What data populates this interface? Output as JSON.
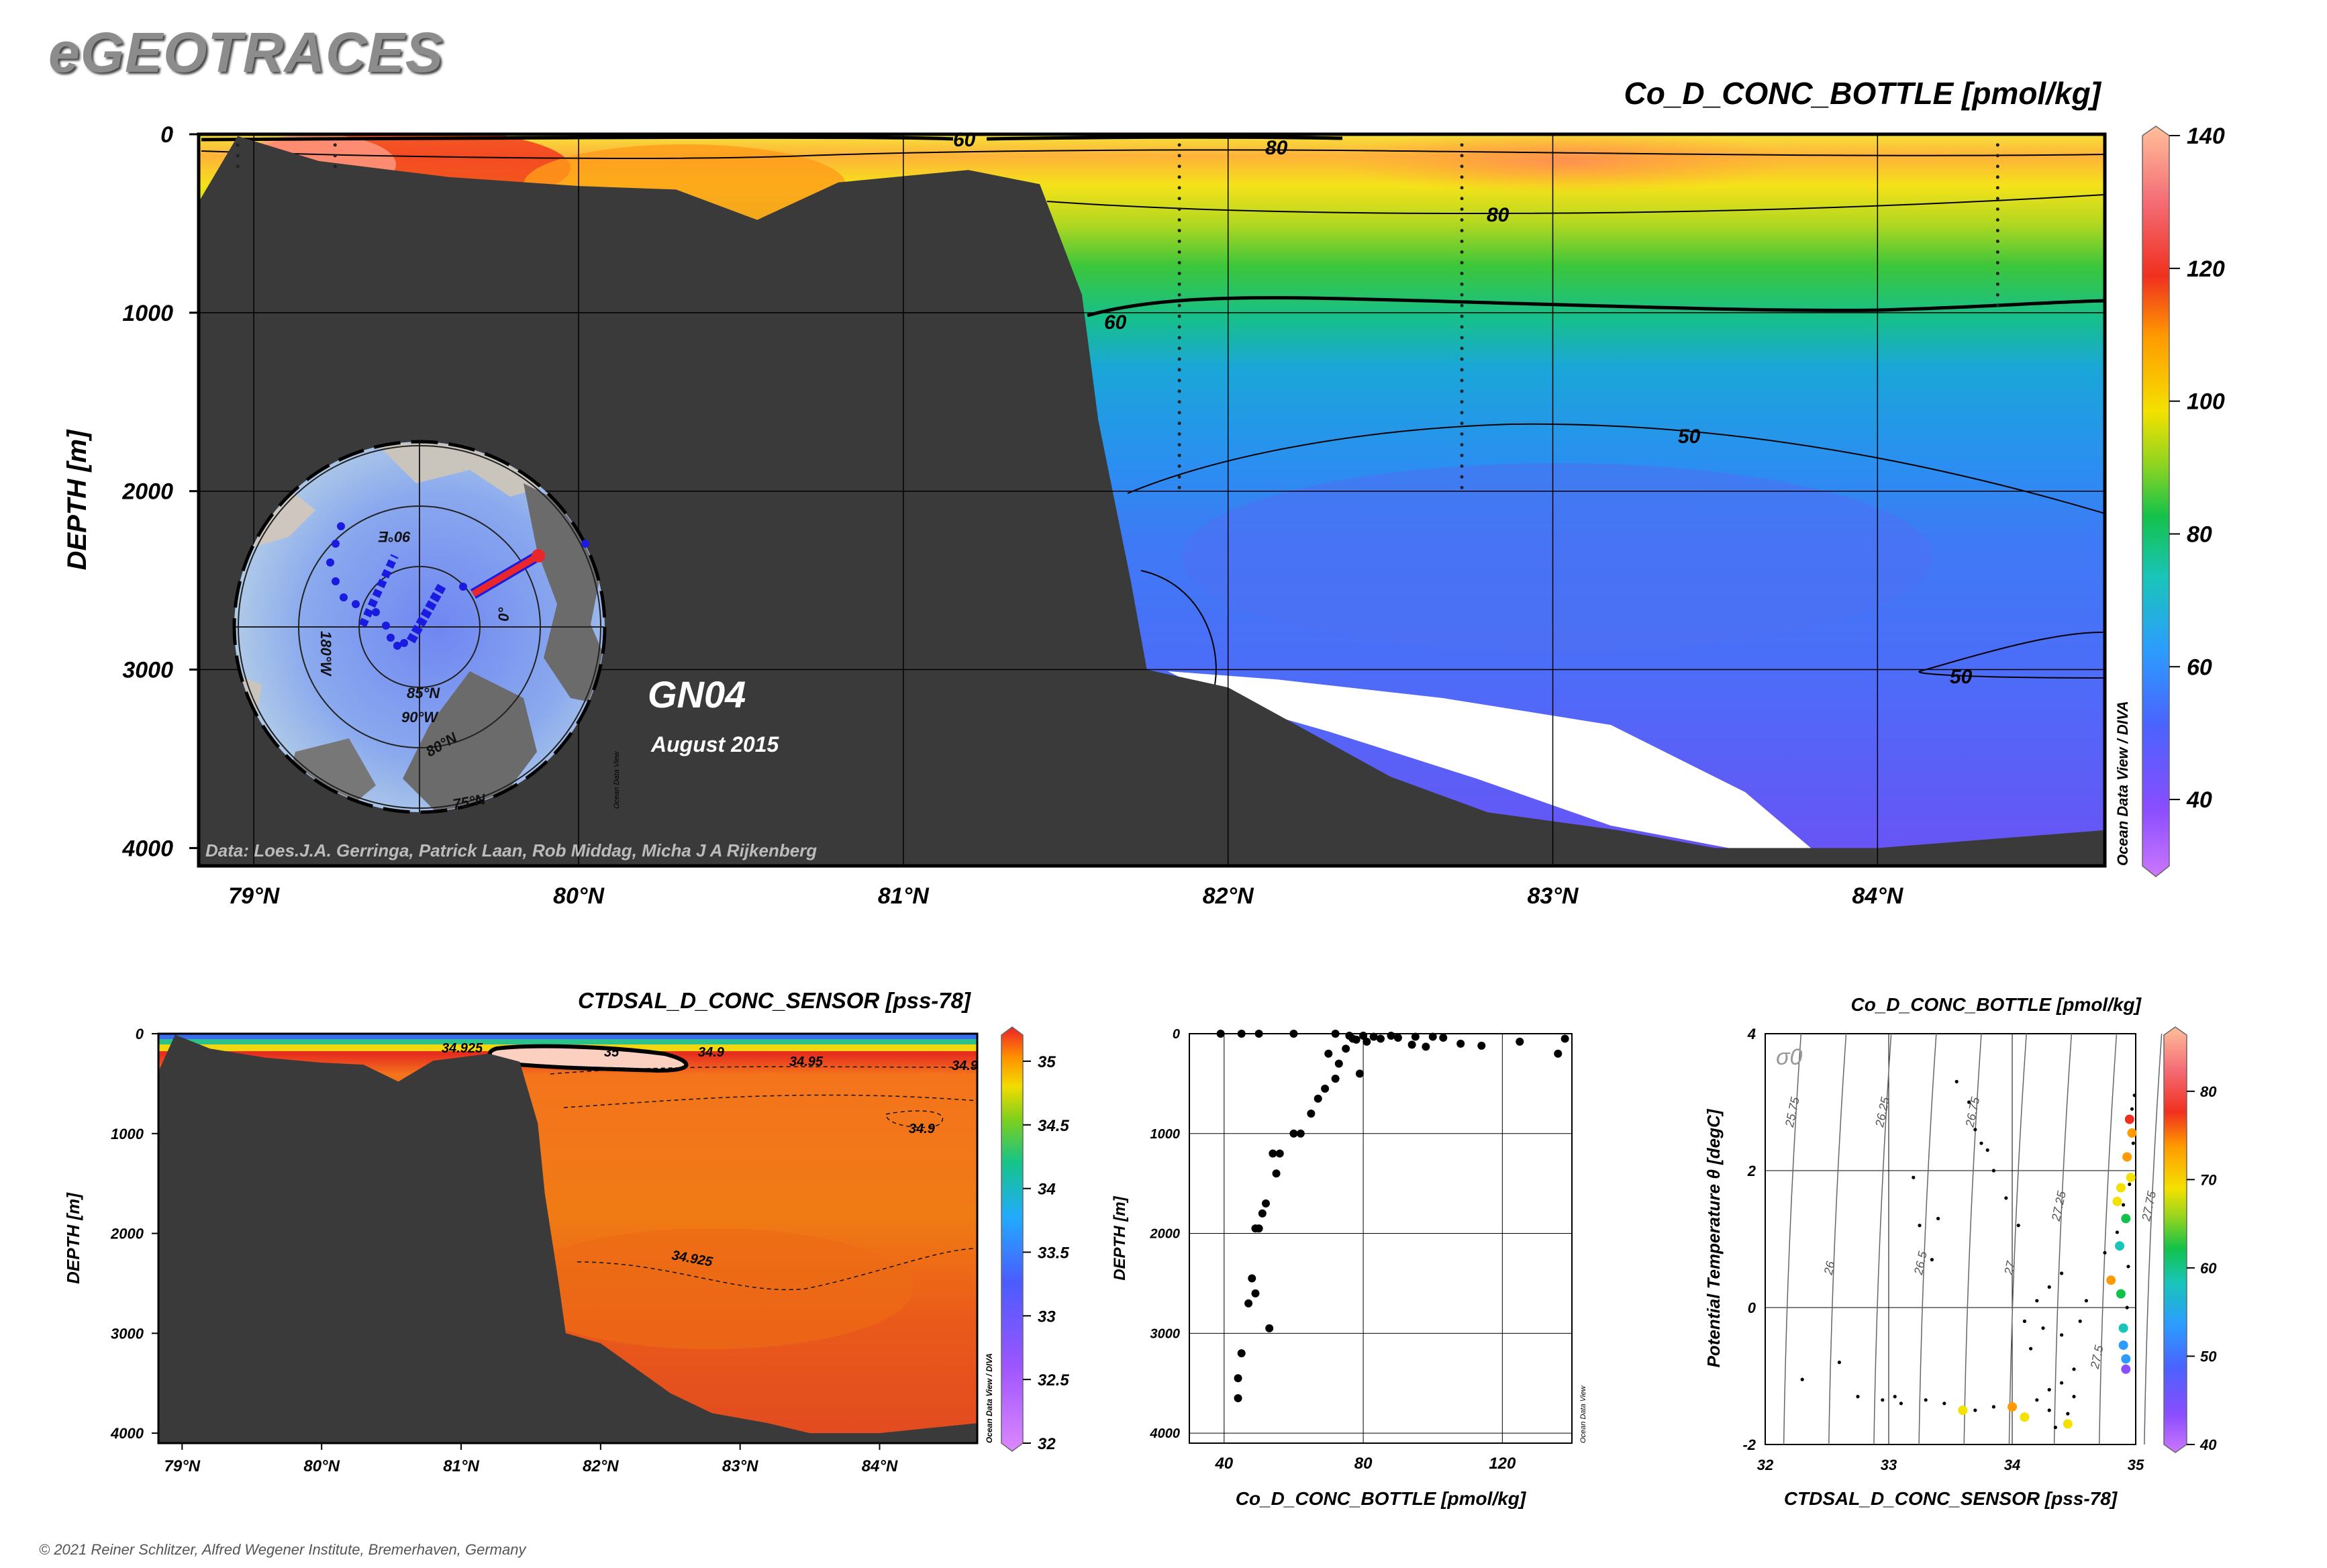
{
  "brand": "eGEOTRACES",
  "copyright": "© 2021 Reiner Schlitzer, Alfred Wegener Institute, Bremerhaven, Germany",
  "main_section": {
    "title": "Co_D_CONC_BOTTLE [pmol/kg]",
    "ylabel": "DEPTH [m]",
    "y_ticks": [
      "0",
      "1000",
      "2000",
      "3000",
      "4000"
    ],
    "x_ticks": [
      "79°N",
      "80°N",
      "81°N",
      "82°N",
      "83°N",
      "84°N"
    ],
    "colorbar_ticks": [
      "140",
      "120",
      "100",
      "80",
      "60",
      "40"
    ],
    "colorbar_range": [
      30,
      140
    ],
    "contour_labels": [
      "60",
      "80",
      "80",
      "60",
      "50",
      "50"
    ],
    "cruise": "GN04",
    "date": "August 2015",
    "credit": "Data: Loes.J.A. Gerringa, Patrick Laan, Rob Middag, Micha J A Rijkenberg",
    "odv_tag": "Ocean Data View / DIVA",
    "map_labels": [
      "90°E",
      "180°W",
      "0°",
      "85°N",
      "90°W",
      "80°N",
      "75°N"
    ],
    "map_tag": "Ocean Data View"
  },
  "sal_section": {
    "title": "CTDSAL_D_CONC_SENSOR [pss-78]",
    "ylabel": "DEPTH [m]",
    "y_ticks": [
      "0",
      "1000",
      "2000",
      "3000",
      "4000"
    ],
    "x_ticks": [
      "79°N",
      "80°N",
      "81°N",
      "82°N",
      "83°N",
      "84°N"
    ],
    "colorbar_ticks": [
      "35",
      "34.5",
      "34",
      "33.5",
      "33",
      "32.5",
      "32"
    ],
    "contour_labels": [
      "34.925",
      "35",
      "34.9",
      "34.95",
      "34.9",
      "34.9",
      "34.925"
    ],
    "odv_tag": "Ocean Data View / DIVA"
  },
  "colors": {
    "bathymetry": "#3a3a3a",
    "contour": "#000000",
    "map_track_red": "#e8262b",
    "map_station_blue": "#1a1ae0"
  },
  "chart_data": [
    {
      "type": "heatmap",
      "title": "Co_D_CONC_BOTTLE [pmol/kg]",
      "xlabel": "",
      "ylabel": "DEPTH [m]",
      "xlim": [
        78.83,
        84.7
      ],
      "ylim": [
        4100,
        0
      ],
      "colorbar": {
        "label": "Co_D_CONC_BOTTLE [pmol/kg]",
        "range": [
          30,
          140
        ],
        "ticks": [
          40,
          60,
          80,
          100,
          120,
          140
        ]
      },
      "profile_latitudes": [
        78.95,
        79.25,
        81.85,
        82.72,
        84.37
      ],
      "contours": [
        50,
        60,
        80
      ],
      "field_description_by_depth": [
        {
          "depth": 0,
          "value": 90
        },
        {
          "depth": 100,
          "value": 95
        },
        {
          "depth": 250,
          "value": 82
        },
        {
          "depth": 500,
          "value": 72
        },
        {
          "depth": 750,
          "value": 63
        },
        {
          "depth": 1000,
          "value": 57
        },
        {
          "depth": 1500,
          "value": 50
        },
        {
          "depth": 2000,
          "value": 46
        },
        {
          "depth": 2500,
          "value": 44
        },
        {
          "depth": 3000,
          "value": 43
        },
        {
          "depth": 4000,
          "value": 40
        }
      ],
      "bathymetry": [
        [
          78.83,
          380
        ],
        [
          78.95,
          10
        ],
        [
          79.2,
          150
        ],
        [
          79.6,
          240
        ],
        [
          80.0,
          290
        ],
        [
          80.3,
          310
        ],
        [
          80.55,
          480
        ],
        [
          80.8,
          270
        ],
        [
          81.2,
          200
        ],
        [
          81.42,
          280
        ],
        [
          81.55,
          900
        ],
        [
          81.6,
          1600
        ],
        [
          81.7,
          2500
        ],
        [
          81.75,
          3000
        ],
        [
          82.0,
          3100
        ],
        [
          82.2,
          3300
        ],
        [
          82.5,
          3600
        ],
        [
          82.8,
          3800
        ],
        [
          83.2,
          3900
        ],
        [
          83.5,
          4000
        ],
        [
          84.0,
          4000
        ],
        [
          84.7,
          3900
        ]
      ]
    },
    {
      "type": "heatmap",
      "title": "CTDSAL_D_CONC_SENSOR [pss-78]",
      "xlabel": "",
      "ylabel": "DEPTH [m]",
      "xlim": [
        78.83,
        84.7
      ],
      "ylim": [
        4100,
        0
      ],
      "colorbar": {
        "label": "CTDSAL_D_CONC_SENSOR [pss-78]",
        "range": [
          32,
          35.1
        ],
        "ticks": [
          32,
          32.5,
          33,
          33.5,
          34,
          34.5,
          35
        ]
      },
      "contours": [
        34.9,
        34.925,
        34.95,
        35
      ]
    },
    {
      "type": "scatter",
      "title": "",
      "xlabel": "Co_D_CONC_BOTTLE [pmol/kg]",
      "ylabel": "DEPTH [m]",
      "xlim": [
        30,
        140
      ],
      "ylim": [
        4100,
        0
      ],
      "x_ticks": [
        40,
        80,
        120
      ],
      "y_ticks": [
        0,
        1000,
        2000,
        3000,
        4000
      ],
      "grid": true,
      "tag": "Ocean Data View",
      "points": [
        [
          39,
          0
        ],
        [
          45,
          0
        ],
        [
          50,
          0
        ],
        [
          60,
          0
        ],
        [
          72,
          0
        ],
        [
          76,
          20
        ],
        [
          80,
          20
        ],
        [
          83,
          30
        ],
        [
          88,
          20
        ],
        [
          95,
          30
        ],
        [
          100,
          30
        ],
        [
          103,
          40
        ],
        [
          77,
          50
        ],
        [
          78,
          60
        ],
        [
          81,
          80
        ],
        [
          85,
          50
        ],
        [
          90,
          40
        ],
        [
          94,
          110
        ],
        [
          98,
          130
        ],
        [
          108,
          100
        ],
        [
          114,
          120
        ],
        [
          125,
          80
        ],
        [
          136,
          200
        ],
        [
          138,
          50
        ],
        [
          70,
          200
        ],
        [
          75,
          150
        ],
        [
          73,
          300
        ],
        [
          79,
          400
        ],
        [
          72,
          450
        ],
        [
          69,
          550
        ],
        [
          67,
          650
        ],
        [
          65,
          800
        ],
        [
          62,
          1000
        ],
        [
          60,
          1000
        ],
        [
          56,
          1200
        ],
        [
          54,
          1200
        ],
        [
          55,
          1400
        ],
        [
          52,
          1700
        ],
        [
          51,
          1800
        ],
        [
          50,
          1950
        ],
        [
          49,
          1950
        ],
        [
          48,
          2450
        ],
        [
          49,
          2600
        ],
        [
          47,
          2700
        ],
        [
          53,
          2950
        ],
        [
          45,
          3200
        ],
        [
          44,
          3450
        ],
        [
          44,
          3650
        ]
      ]
    },
    {
      "type": "scatter",
      "title": "Co_D_CONC_BOTTLE [pmol/kg]",
      "xlabel": "CTDSAL_D_CONC_SENSOR [pss-78]",
      "ylabel": "Potential Temperature θ [degC]",
      "xlim": [
        32,
        35
      ],
      "ylim": [
        -2,
        4
      ],
      "x_ticks": [
        32,
        33,
        34,
        35
      ],
      "y_ticks": [
        -2,
        0,
        2,
        4
      ],
      "isopycnal_label": "σ0",
      "isopycnals": [
        "25.75",
        "26",
        "26.25",
        "26.5",
        "26.75",
        "27",
        "27.25",
        "27.5",
        "27.75"
      ],
      "colorbar": {
        "label": "Co_D_CONC_BOTTLE [pmol/kg]",
        "range": [
          40,
          85
        ],
        "ticks": [
          40,
          50,
          60,
          70,
          80
        ]
      },
      "grid": true,
      "colored_points": [
        [
          34.95,
          2.75,
          80
        ],
        [
          34.97,
          2.55,
          78
        ],
        [
          34.93,
          2.2,
          77
        ],
        [
          34.96,
          1.9,
          72
        ],
        [
          34.88,
          1.75,
          71
        ],
        [
          34.85,
          1.55,
          68
        ],
        [
          34.92,
          1.3,
          64
        ],
        [
          34.87,
          0.9,
          60
        ],
        [
          34.8,
          0.4,
          78
        ],
        [
          34.88,
          0.2,
          63
        ],
        [
          34.9,
          -0.3,
          57
        ],
        [
          34.9,
          -0.55,
          53
        ],
        [
          34.92,
          -0.75,
          48
        ],
        [
          34.92,
          -0.9,
          44
        ],
        [
          33.6,
          -1.5,
          72
        ],
        [
          34.0,
          -1.45,
          78
        ],
        [
          34.45,
          -1.7,
          73
        ],
        [
          34.1,
          -1.6,
          70
        ]
      ],
      "black_points": [
        [
          32.3,
          -1.05
        ],
        [
          32.6,
          -0.8
        ],
        [
          32.75,
          -1.3
        ],
        [
          32.95,
          -1.35
        ],
        [
          33.05,
          -1.3
        ],
        [
          33.1,
          -1.4
        ],
        [
          33.3,
          -1.35
        ],
        [
          33.45,
          -1.4
        ],
        [
          33.7,
          -1.5
        ],
        [
          33.85,
          -1.45
        ],
        [
          34.2,
          -1.35
        ],
        [
          34.3,
          -1.2
        ],
        [
          34.4,
          -1.1
        ],
        [
          34.5,
          -0.9
        ],
        [
          34.3,
          -1.5
        ],
        [
          34.35,
          -1.75
        ],
        [
          33.55,
          3.3
        ],
        [
          33.65,
          3.0
        ],
        [
          33.7,
          2.6
        ],
        [
          33.75,
          2.4
        ],
        [
          33.8,
          2.3
        ],
        [
          33.85,
          2.0
        ],
        [
          33.95,
          1.6
        ],
        [
          34.05,
          1.2
        ],
        [
          33.4,
          1.3
        ],
        [
          33.25,
          1.2
        ],
        [
          33.2,
          1.9
        ],
        [
          33.35,
          0.7
        ],
        [
          34.2,
          0.1
        ],
        [
          34.3,
          0.3
        ],
        [
          34.4,
          0.5
        ],
        [
          34.25,
          -0.3
        ],
        [
          34.1,
          -0.2
        ],
        [
          34.15,
          -0.6
        ],
        [
          34.4,
          -0.4
        ],
        [
          34.55,
          -0.2
        ],
        [
          34.6,
          0.1
        ],
        [
          34.75,
          0.8
        ],
        [
          34.85,
          1.1
        ],
        [
          34.9,
          1.5
        ],
        [
          34.95,
          1.8
        ],
        [
          34.98,
          2.4
        ],
        [
          34.97,
          2.9
        ],
        [
          34.99,
          3.1
        ],
        [
          34.94,
          0.6
        ],
        [
          34.93,
          0.0
        ],
        [
          34.5,
          -1.3
        ],
        [
          34.45,
          -1.55
        ]
      ]
    }
  ]
}
